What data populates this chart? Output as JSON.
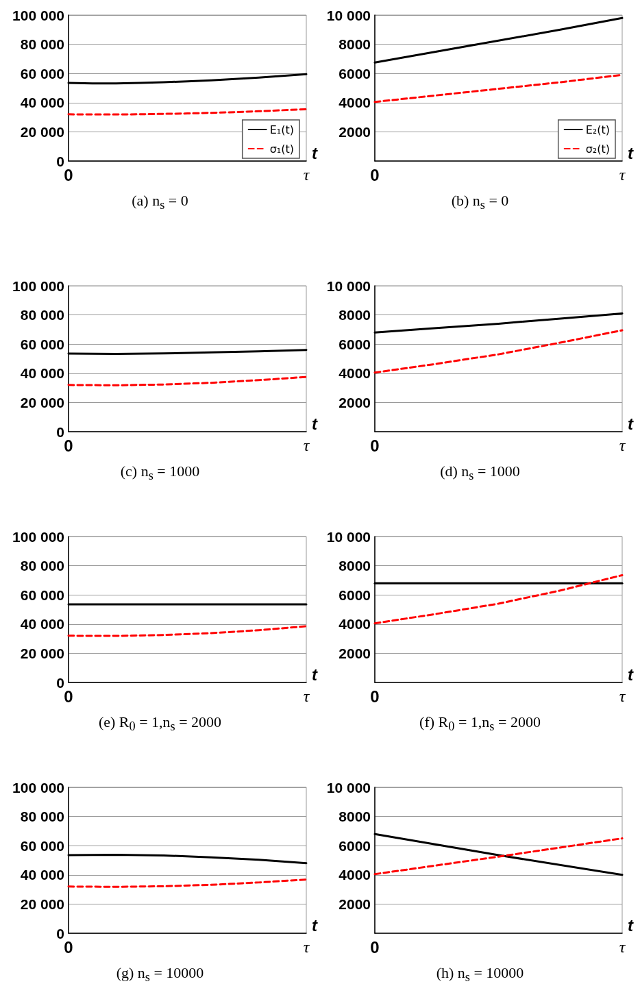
{
  "chart_data": [
    {
      "type": "line",
      "title": "(a) n$_{s}$ = 0",
      "xlabel": "t",
      "categories": [
        "0",
        null,
        null,
        null,
        null,
        null,
        null,
        null,
        null,
        null,
        "τ"
      ],
      "ylim": [
        0,
        100000
      ],
      "yticks": [
        0,
        {
          "value": 20000,
          "label": "20 000"
        },
        {
          "value": 40000,
          "label": "40 000"
        },
        {
          "value": 60000,
          "label": "60 000"
        },
        {
          "value": 80000,
          "label": "80 000"
        },
        {
          "value": 100000,
          "label": "100 000"
        }
      ],
      "grid": "y",
      "legend": "bottom right",
      "series": [
        {
          "name": "E₁(t)",
          "color": "#000000",
          "line_style": "solid",
          "values": [
            53500,
            53200,
            53200,
            53500,
            54000,
            54600,
            55300,
            56200,
            57200,
            58300,
            59500
          ]
        },
        {
          "name": "σ₁(t)",
          "color": "#ff0000",
          "line_style": "dashed",
          "values": [
            32000,
            31900,
            31900,
            32000,
            32300,
            32600,
            33000,
            33500,
            34100,
            34800,
            35500
          ]
        }
      ]
    },
    {
      "type": "line",
      "title": "(b) n$_{s}$ = 0",
      "xlabel": "t",
      "categories": [
        "0",
        null,
        null,
        null,
        "τ"
      ],
      "ylim": [
        0,
        10000
      ],
      "yticks": [
        2000,
        4000,
        6000,
        8000,
        {
          "value": 10000,
          "label": "10 000"
        }
      ],
      "grid": "y",
      "legend": "bottom right",
      "series": [
        {
          "name": "E₂(t)",
          "color": "#000000",
          "line_style": "solid",
          "values": [
            6750,
            7500,
            8250,
            9000,
            9800
          ]
        },
        {
          "name": "σ₂(t)",
          "color": "#ff0000",
          "line_style": "dashed",
          "values": [
            4050,
            4500,
            4950,
            5400,
            5900
          ]
        }
      ]
    },
    {
      "type": "line",
      "title": "(c) n$_{s}$ = 1000",
      "xlabel": "t",
      "categories": [
        "0",
        null,
        null,
        null,
        null,
        "τ"
      ],
      "ylim": [
        0,
        100000
      ],
      "yticks": [
        0,
        {
          "value": 20000,
          "label": "20 000"
        },
        {
          "value": 40000,
          "label": "40 000"
        },
        {
          "value": 60000,
          "label": "60 000"
        },
        {
          "value": 80000,
          "label": "80 000"
        },
        {
          "value": 100000,
          "label": "100 000"
        }
      ],
      "grid": "y",
      "series": [
        {
          "color": "#000000",
          "line_style": "solid",
          "values": [
            53500,
            53300,
            53600,
            54300,
            55100,
            56000
          ]
        },
        {
          "color": "#ff0000",
          "line_style": "dashed",
          "values": [
            32000,
            31800,
            32300,
            33500,
            35300,
            37500
          ]
        }
      ]
    },
    {
      "type": "line",
      "title": "(d) n$_{s}$ = 1000",
      "xlabel": "t",
      "categories": [
        "0",
        null,
        null,
        null,
        "τ"
      ],
      "ylim": [
        0,
        10000
      ],
      "yticks": [
        2000,
        4000,
        6000,
        8000,
        {
          "value": 10000,
          "label": "10 000"
        }
      ],
      "grid": "y",
      "series": [
        {
          "color": "#000000",
          "line_style": "solid",
          "values": [
            6800,
            7100,
            7400,
            7750,
            8100
          ]
        },
        {
          "color": "#ff0000",
          "line_style": "dashed",
          "values": [
            4050,
            4650,
            5300,
            6100,
            6950
          ]
        }
      ]
    },
    {
      "type": "line",
      "title": "(e) R$_{0}$ = 1,n$_{s}$ = 2000",
      "xlabel": "t",
      "categories": [
        "0",
        null,
        null,
        null,
        null,
        "τ"
      ],
      "ylim": [
        0,
        100000
      ],
      "yticks": [
        0,
        {
          "value": 20000,
          "label": "20 000"
        },
        {
          "value": 40000,
          "label": "40 000"
        },
        {
          "value": 60000,
          "label": "60 000"
        },
        {
          "value": 80000,
          "label": "80 000"
        },
        {
          "value": 100000,
          "label": "100 000"
        }
      ],
      "grid": "y",
      "series": [
        {
          "color": "#000000",
          "line_style": "solid",
          "values": [
            53500,
            53500,
            53500,
            53500,
            53500,
            53500
          ]
        },
        {
          "color": "#ff0000",
          "line_style": "dashed",
          "values": [
            32000,
            31900,
            32500,
            33800,
            35800,
            38500
          ]
        }
      ]
    },
    {
      "type": "line",
      "title": "(f) R$_{0}$ = 1,n$_{s}$ = 2000",
      "xlabel": "t",
      "categories": [
        "0",
        null,
        null,
        null,
        "τ"
      ],
      "ylim": [
        0,
        10000
      ],
      "yticks": [
        2000,
        4000,
        6000,
        8000,
        {
          "value": 10000,
          "label": "10 000"
        }
      ],
      "grid": "y",
      "series": [
        {
          "color": "#000000",
          "line_style": "solid",
          "values": [
            6800,
            6800,
            6800,
            6800,
            6800
          ]
        },
        {
          "color": "#ff0000",
          "line_style": "dashed",
          "values": [
            4050,
            4700,
            5400,
            6300,
            7350
          ]
        }
      ]
    },
    {
      "type": "line",
      "title": "(g) n$_{s}$ = 10000",
      "xlabel": "t",
      "categories": [
        "0",
        null,
        null,
        null,
        null,
        "τ"
      ],
      "ylim": [
        0,
        100000
      ],
      "yticks": [
        0,
        {
          "value": 20000,
          "label": "20 000"
        },
        {
          "value": 40000,
          "label": "40 000"
        },
        {
          "value": 60000,
          "label": "60 000"
        },
        {
          "value": 80000,
          "label": "80 000"
        },
        {
          "value": 100000,
          "label": "100 000"
        }
      ],
      "grid": "y",
      "series": [
        {
          "color": "#000000",
          "line_style": "solid",
          "values": [
            53500,
            53800,
            53300,
            52000,
            50300,
            48000
          ]
        },
        {
          "color": "#ff0000",
          "line_style": "dashed",
          "values": [
            32000,
            31800,
            32200,
            33200,
            34800,
            36800
          ]
        }
      ]
    },
    {
      "type": "line",
      "title": "(h) n$_{s}$ = 10000",
      "xlabel": "t",
      "categories": [
        "0",
        null,
        "τ"
      ],
      "ylim": [
        0,
        10000
      ],
      "yticks": [
        2000,
        4000,
        6000,
        8000,
        {
          "value": 10000,
          "label": "10 000"
        }
      ],
      "grid": "y",
      "series": [
        {
          "color": "#000000",
          "line_style": "solid",
          "values": [
            6800,
            5350,
            4000
          ]
        },
        {
          "color": "#ff0000",
          "line_style": "dashed",
          "values": [
            4050,
            5250,
            6500
          ]
        }
      ]
    }
  ]
}
